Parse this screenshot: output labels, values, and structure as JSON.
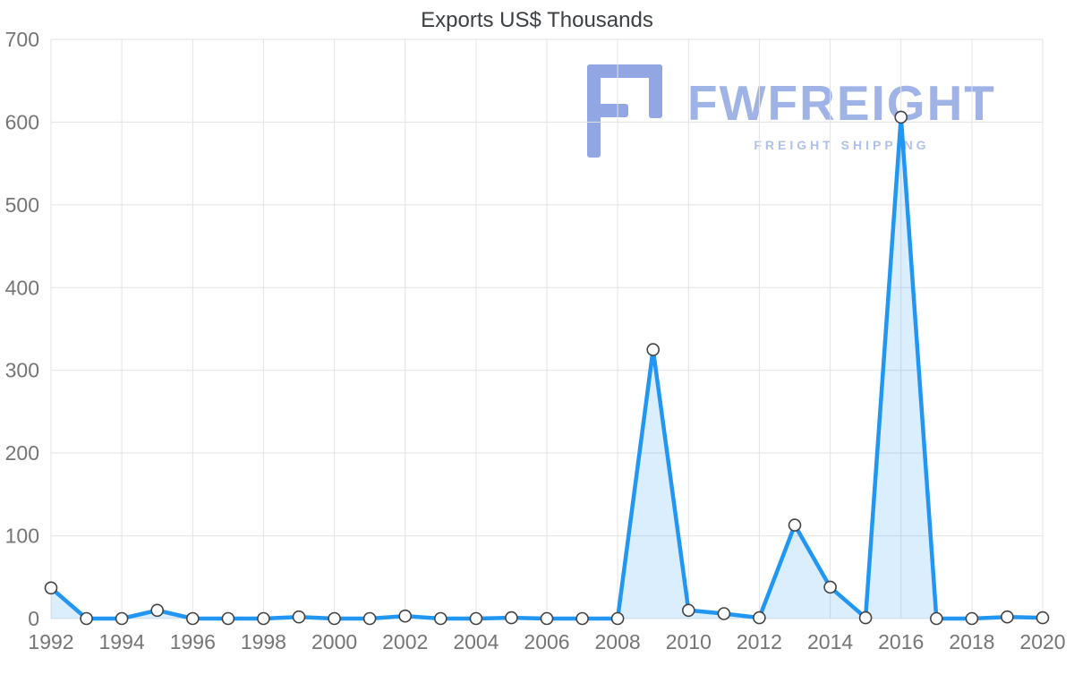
{
  "title": "Exports US$ Thousands",
  "watermark": {
    "brand": "FWFREIGHT",
    "tagline": "FREIGHT SHIPPING",
    "icon": "fwfreight-logo-icon",
    "brand_color": "#9fb3e6",
    "icon_color": "#7e97de",
    "tagline_color": "#afc0ea"
  },
  "chart_data": {
    "type": "area",
    "title": "Exports US$ Thousands",
    "xlabel": "",
    "ylabel": "",
    "x": [
      1992,
      1993,
      1994,
      1995,
      1996,
      1997,
      1998,
      1999,
      2000,
      2001,
      2002,
      2003,
      2004,
      2005,
      2006,
      2007,
      2008,
      2009,
      2010,
      2011,
      2012,
      2013,
      2014,
      2015,
      2016,
      2017,
      2018,
      2019,
      2020
    ],
    "values": [
      37,
      0,
      0,
      10,
      0,
      0,
      0,
      2,
      0,
      0,
      3,
      0,
      0,
      1,
      0,
      0,
      0,
      325,
      10,
      6,
      1,
      113,
      38,
      1,
      606,
      0,
      0,
      2,
      1
    ],
    "series_name": "Exports US$ Thousands",
    "xlim": [
      1992,
      2020
    ],
    "ylim": [
      0,
      700
    ],
    "xticks": [
      1992,
      1994,
      1996,
      1998,
      2000,
      2002,
      2004,
      2006,
      2008,
      2010,
      2012,
      2014,
      2016,
      2018,
      2020
    ],
    "yticks": [
      0,
      100,
      200,
      300,
      400,
      500,
      600,
      700
    ],
    "grid": true,
    "legend": false,
    "colors": {
      "line": "#2196f3",
      "fill": "rgba(33,150,243,0.16)",
      "marker_fill": "#ffffff",
      "marker_stroke": "#424242",
      "grid": "#e3e3e3",
      "tick_label": "#757575",
      "title": "#3c4043"
    }
  }
}
